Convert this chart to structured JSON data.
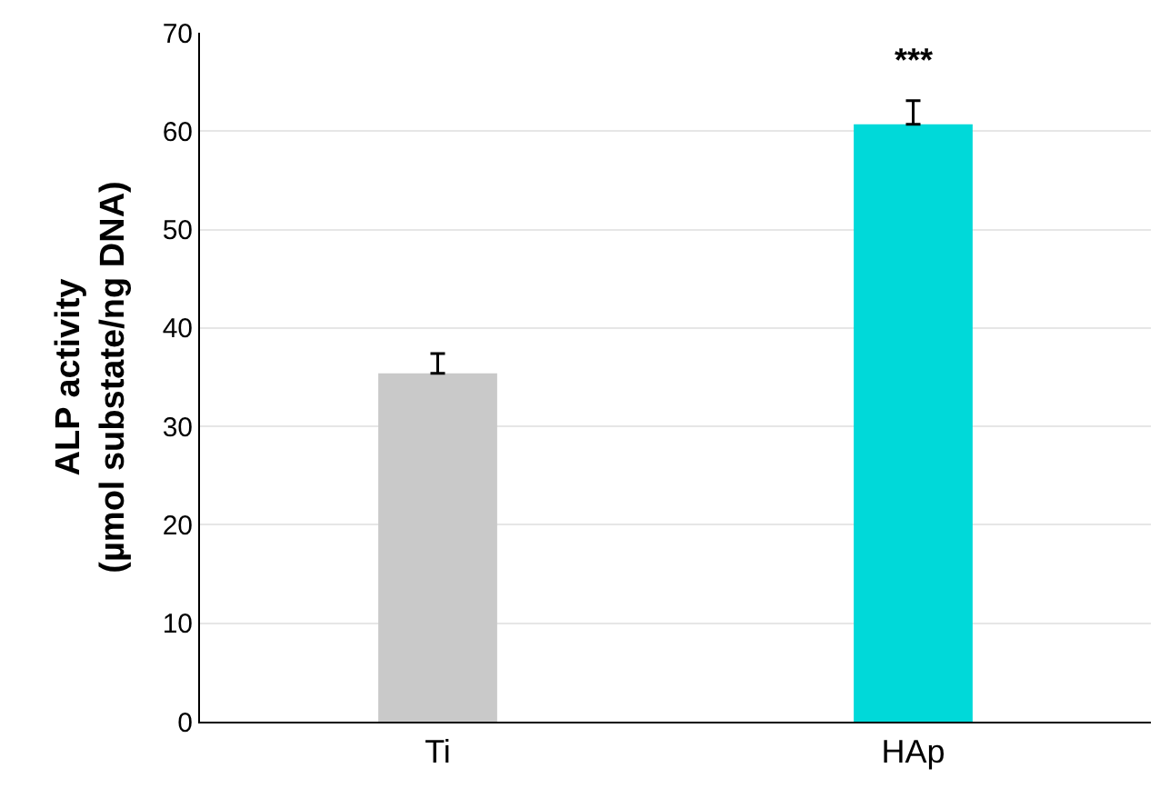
{
  "chart_data": {
    "type": "bar",
    "ylabel": "ALP activity\n(µmol substate/ng DNA)",
    "categories": [
      "Ti",
      "HAp"
    ],
    "values": [
      35.4,
      60.7
    ],
    "colors": [
      "#c9c9c9",
      "#00d9d9"
    ],
    "errors": [
      [
        35.4,
        37.4
      ],
      [
        60.7,
        63.1
      ]
    ],
    "ylim": [
      0,
      70
    ],
    "yticks": [
      0,
      10,
      20,
      30,
      40,
      50,
      60,
      70
    ],
    "grid": "y",
    "annotations": [
      "***"
    ]
  }
}
